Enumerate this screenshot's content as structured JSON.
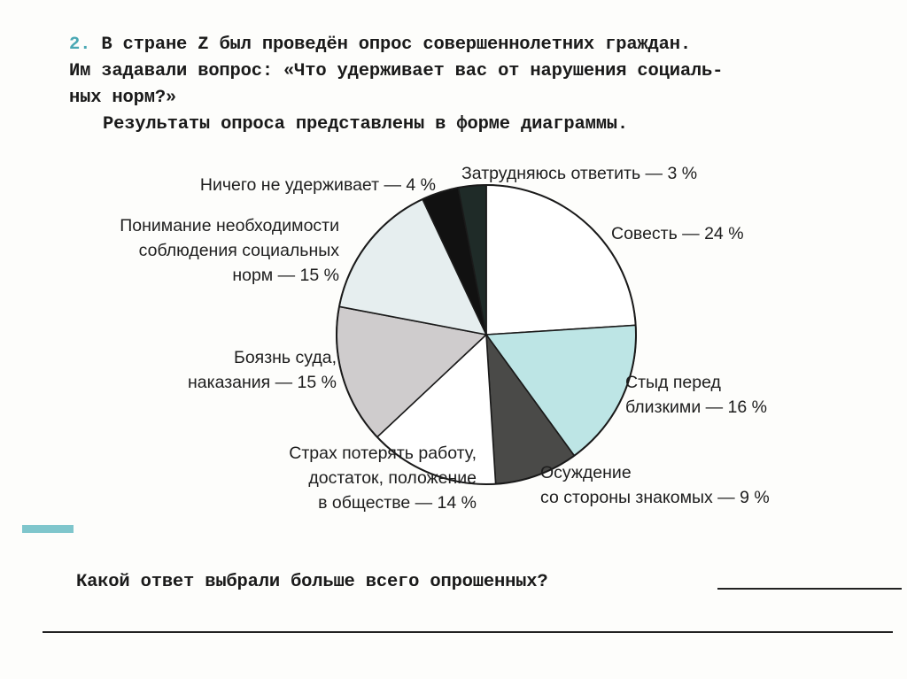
{
  "task": {
    "number": "2.",
    "line1": "В стране Z был проведён опрос совершеннолетних граждан.",
    "line2": "Им задавали вопрос: «Что удерживает вас от нарушения социаль-",
    "line3": "ных норм?»",
    "results": "Результаты опроса представлены в форме диаграммы."
  },
  "chart_data": {
    "type": "pie",
    "title": "",
    "slices": [
      {
        "label_lines": [
          "Совесть — 24 %"
        ],
        "value": 24,
        "color": "#ffffff"
      },
      {
        "label_lines": [
          "Стыд перед",
          "близкими — 16 %"
        ],
        "value": 16,
        "color": "#bde5e5"
      },
      {
        "label_lines": [
          "Осуждение",
          "со стороны знакомых — 9 %"
        ],
        "value": 9,
        "color": "#4a4a48"
      },
      {
        "label_lines": [
          "Страх потерять работу,",
          "достаток, положение",
          "в обществе — 14 %"
        ],
        "value": 14,
        "color": "#ffffff"
      },
      {
        "label_lines": [
          "Боязнь суда,",
          "наказания — 15 %"
        ],
        "value": 15,
        "color": "#cfcccd"
      },
      {
        "label_lines": [
          "Понимание необходимости",
          "соблюдения социальных",
          "норм — 15 %"
        ],
        "value": 15,
        "color": "#e6eeef"
      },
      {
        "label_lines": [
          "Ничего не удерживает — 4 %"
        ],
        "value": 4,
        "color": "#111111"
      },
      {
        "label_lines": [
          "Затрудняюсь ответить — 3 %"
        ],
        "value": 3,
        "color": "#1f2b28"
      }
    ]
  },
  "question": "Какой ответ выбрали больше всего опрошенных?",
  "colors": {
    "accent": "#4aa8b4",
    "accent_bar": "#7fc6cc"
  }
}
